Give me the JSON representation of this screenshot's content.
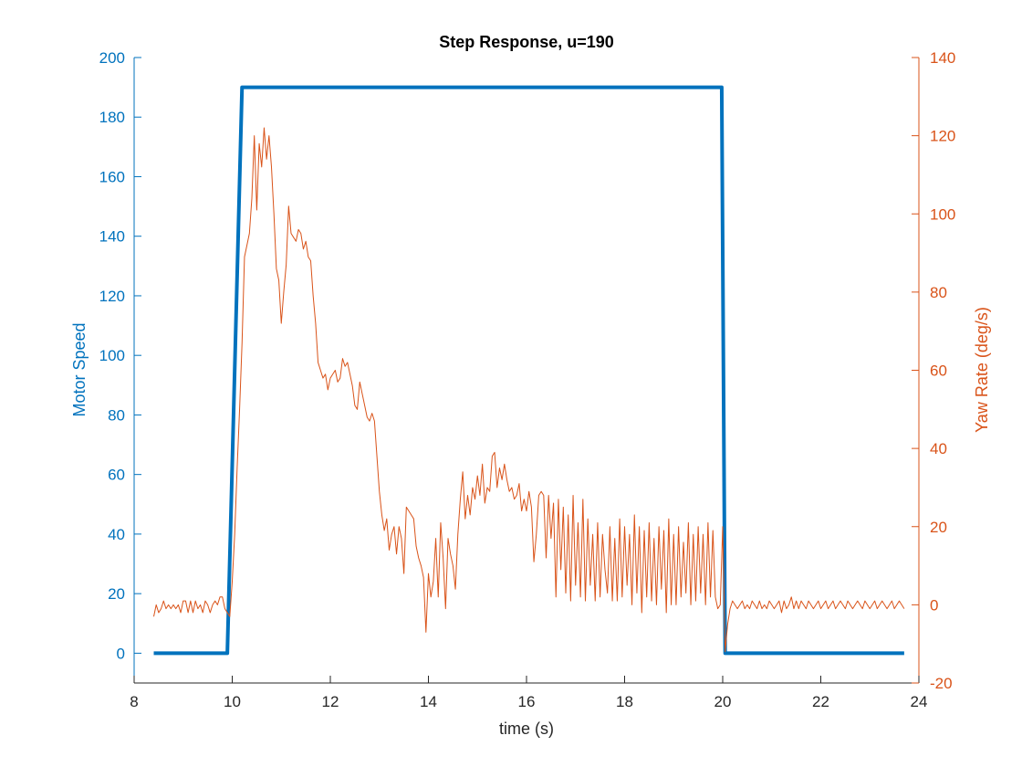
{
  "chart_data": {
    "type": "line",
    "title": "Step Response, u=190",
    "xlabel": "time (s)",
    "ylabel_left": "Motor Speed",
    "ylabel_right": "Yaw Rate (deg/s)",
    "xlim": [
      8,
      24
    ],
    "ylim_left": [
      -10,
      200
    ],
    "ylim_right": [
      -20,
      140
    ],
    "xticks": [
      8,
      10,
      12,
      14,
      16,
      18,
      20,
      22,
      24
    ],
    "yticks_left": [
      0,
      20,
      40,
      60,
      80,
      100,
      120,
      140,
      160,
      180,
      200
    ],
    "yticks_right": [
      -20,
      0,
      20,
      40,
      60,
      80,
      100,
      120,
      140
    ],
    "grid": false,
    "colors": {
      "left_axis": "#0072BD",
      "right_axis": "#D95319",
      "text": "#262626"
    },
    "series": [
      {
        "axis": "left",
        "color": "#0072BD",
        "points": [
          [
            8.4,
            0
          ],
          [
            9.9,
            0
          ],
          [
            10.2,
            190
          ],
          [
            19.98,
            190
          ],
          [
            20.05,
            0
          ],
          [
            23.7,
            0
          ]
        ]
      },
      {
        "axis": "right",
        "color": "#D95319",
        "points": [
          [
            8.4,
            -3
          ],
          [
            8.45,
            0
          ],
          [
            8.5,
            -2
          ],
          [
            8.55,
            -1
          ],
          [
            8.6,
            1
          ],
          [
            8.65,
            -1
          ],
          [
            8.7,
            0
          ],
          [
            8.75,
            -1
          ],
          [
            8.8,
            0
          ],
          [
            8.85,
            -1
          ],
          [
            8.9,
            0
          ],
          [
            8.95,
            -2
          ],
          [
            9.0,
            1
          ],
          [
            9.05,
            1
          ],
          [
            9.1,
            -2
          ],
          [
            9.15,
            1
          ],
          [
            9.2,
            -2
          ],
          [
            9.25,
            1
          ],
          [
            9.3,
            -1
          ],
          [
            9.35,
            0
          ],
          [
            9.4,
            -2
          ],
          [
            9.45,
            1
          ],
          [
            9.5,
            0
          ],
          [
            9.55,
            -2
          ],
          [
            9.6,
            0
          ],
          [
            9.65,
            1
          ],
          [
            9.7,
            0
          ],
          [
            9.75,
            2
          ],
          [
            9.8,
            2
          ],
          [
            9.85,
            -1
          ],
          [
            9.9,
            -2
          ],
          [
            9.95,
            -3
          ],
          [
            10.0,
            6
          ],
          [
            10.05,
            18
          ],
          [
            10.1,
            35
          ],
          [
            10.15,
            50
          ],
          [
            10.2,
            67
          ],
          [
            10.25,
            89
          ],
          [
            10.3,
            92
          ],
          [
            10.35,
            95
          ],
          [
            10.4,
            104
          ],
          [
            10.45,
            120
          ],
          [
            10.5,
            101
          ],
          [
            10.55,
            118
          ],
          [
            10.6,
            112
          ],
          [
            10.65,
            122
          ],
          [
            10.7,
            114
          ],
          [
            10.75,
            120
          ],
          [
            10.8,
            112
          ],
          [
            10.85,
            100
          ],
          [
            10.9,
            86
          ],
          [
            10.95,
            83
          ],
          [
            11.0,
            72
          ],
          [
            11.05,
            80
          ],
          [
            11.1,
            87
          ],
          [
            11.15,
            102
          ],
          [
            11.2,
            95
          ],
          [
            11.25,
            94
          ],
          [
            11.3,
            93
          ],
          [
            11.35,
            96
          ],
          [
            11.4,
            95
          ],
          [
            11.45,
            91
          ],
          [
            11.5,
            93
          ],
          [
            11.55,
            89
          ],
          [
            11.6,
            88
          ],
          [
            11.65,
            79
          ],
          [
            11.7,
            72
          ],
          [
            11.75,
            62
          ],
          [
            11.8,
            60
          ],
          [
            11.85,
            58
          ],
          [
            11.9,
            59
          ],
          [
            11.95,
            55
          ],
          [
            12.0,
            58
          ],
          [
            12.05,
            59
          ],
          [
            12.1,
            60
          ],
          [
            12.15,
            57
          ],
          [
            12.2,
            58
          ],
          [
            12.25,
            63
          ],
          [
            12.3,
            61
          ],
          [
            12.35,
            62
          ],
          [
            12.4,
            59
          ],
          [
            12.45,
            56
          ],
          [
            12.5,
            51
          ],
          [
            12.55,
            50
          ],
          [
            12.6,
            57
          ],
          [
            12.65,
            54
          ],
          [
            12.7,
            51
          ],
          [
            12.75,
            48
          ],
          [
            12.8,
            47
          ],
          [
            12.85,
            49
          ],
          [
            12.9,
            47
          ],
          [
            12.95,
            38
          ],
          [
            13.0,
            29
          ],
          [
            13.05,
            23
          ],
          [
            13.1,
            19
          ],
          [
            13.15,
            22
          ],
          [
            13.2,
            14
          ],
          [
            13.25,
            18
          ],
          [
            13.3,
            20
          ],
          [
            13.35,
            13
          ],
          [
            13.4,
            20
          ],
          [
            13.45,
            17
          ],
          [
            13.5,
            8
          ],
          [
            13.55,
            25
          ],
          [
            13.6,
            24
          ],
          [
            13.65,
            23
          ],
          [
            13.7,
            22
          ],
          [
            13.75,
            15
          ],
          [
            13.8,
            12
          ],
          [
            13.85,
            10
          ],
          [
            13.9,
            7
          ],
          [
            13.95,
            -7
          ],
          [
            14.0,
            8
          ],
          [
            14.05,
            2
          ],
          [
            14.1,
            6
          ],
          [
            14.15,
            17
          ],
          [
            14.2,
            2
          ],
          [
            14.25,
            21
          ],
          [
            14.3,
            12
          ],
          [
            14.35,
            -1
          ],
          [
            14.4,
            17
          ],
          [
            14.45,
            13
          ],
          [
            14.5,
            10
          ],
          [
            14.55,
            4
          ],
          [
            14.6,
            18
          ],
          [
            14.65,
            27
          ],
          [
            14.7,
            34
          ],
          [
            14.75,
            22
          ],
          [
            14.8,
            28
          ],
          [
            14.85,
            23
          ],
          [
            14.9,
            30
          ],
          [
            14.95,
            27
          ],
          [
            15.0,
            33
          ],
          [
            15.05,
            28
          ],
          [
            15.1,
            36
          ],
          [
            15.15,
            26
          ],
          [
            15.2,
            30
          ],
          [
            15.25,
            29
          ],
          [
            15.3,
            38
          ],
          [
            15.35,
            39
          ],
          [
            15.4,
            30
          ],
          [
            15.45,
            35
          ],
          [
            15.5,
            32
          ],
          [
            15.55,
            36
          ],
          [
            15.6,
            32
          ],
          [
            15.65,
            29
          ],
          [
            15.7,
            30
          ],
          [
            15.75,
            27
          ],
          [
            15.8,
            28
          ],
          [
            15.85,
            31
          ],
          [
            15.9,
            24
          ],
          [
            15.95,
            27
          ],
          [
            16.0,
            24
          ],
          [
            16.05,
            29
          ],
          [
            16.1,
            25
          ],
          [
            16.15,
            11
          ],
          [
            16.2,
            18
          ],
          [
            16.25,
            28
          ],
          [
            16.3,
            29
          ],
          [
            16.35,
            28
          ],
          [
            16.4,
            12
          ],
          [
            16.45,
            28
          ],
          [
            16.5,
            17
          ],
          [
            16.55,
            26
          ],
          [
            16.6,
            2
          ],
          [
            16.65,
            27
          ],
          [
            16.7,
            9
          ],
          [
            16.75,
            25
          ],
          [
            16.8,
            3
          ],
          [
            16.85,
            23
          ],
          [
            16.9,
            1
          ],
          [
            16.95,
            28
          ],
          [
            17.0,
            5
          ],
          [
            17.05,
            21
          ],
          [
            17.1,
            2
          ],
          [
            17.15,
            27
          ],
          [
            17.2,
            1
          ],
          [
            17.25,
            22
          ],
          [
            17.3,
            5
          ],
          [
            17.35,
            18
          ],
          [
            17.4,
            1
          ],
          [
            17.45,
            21
          ],
          [
            17.5,
            2
          ],
          [
            17.55,
            18
          ],
          [
            17.6,
            9
          ],
          [
            17.65,
            3
          ],
          [
            17.7,
            20
          ],
          [
            17.75,
            1
          ],
          [
            17.8,
            17
          ],
          [
            17.85,
            1
          ],
          [
            17.9,
            22
          ],
          [
            17.95,
            2
          ],
          [
            18.0,
            20
          ],
          [
            18.05,
            5
          ],
          [
            18.1,
            18
          ],
          [
            18.15,
            0
          ],
          [
            18.2,
            23
          ],
          [
            18.25,
            3
          ],
          [
            18.3,
            20
          ],
          [
            18.35,
            -2
          ],
          [
            18.4,
            19
          ],
          [
            18.45,
            2
          ],
          [
            18.5,
            21
          ],
          [
            18.55,
            1
          ],
          [
            18.6,
            17
          ],
          [
            18.65,
            0
          ],
          [
            18.7,
            20
          ],
          [
            18.75,
            4
          ],
          [
            18.8,
            19
          ],
          [
            18.85,
            -2
          ],
          [
            18.9,
            22
          ],
          [
            18.95,
            0
          ],
          [
            19.0,
            18
          ],
          [
            19.05,
            0
          ],
          [
            19.1,
            20
          ],
          [
            19.15,
            2
          ],
          [
            19.2,
            16
          ],
          [
            19.25,
            3
          ],
          [
            19.3,
            21
          ],
          [
            19.35,
            0
          ],
          [
            19.4,
            18
          ],
          [
            19.45,
            1
          ],
          [
            19.5,
            20
          ],
          [
            19.55,
            3
          ],
          [
            19.6,
            18
          ],
          [
            19.65,
            0
          ],
          [
            19.7,
            21
          ],
          [
            19.75,
            2
          ],
          [
            19.8,
            19
          ],
          [
            19.85,
            2
          ],
          [
            19.9,
            -1
          ],
          [
            19.95,
            0
          ],
          [
            20.0,
            20
          ],
          [
            20.05,
            -12
          ],
          [
            20.1,
            -5
          ],
          [
            20.15,
            -1
          ],
          [
            20.2,
            1
          ],
          [
            20.25,
            0
          ],
          [
            20.3,
            -1
          ],
          [
            20.35,
            0
          ],
          [
            20.4,
            1
          ],
          [
            20.45,
            -1
          ],
          [
            20.5,
            0
          ],
          [
            20.55,
            -1
          ],
          [
            20.6,
            1
          ],
          [
            20.65,
            0
          ],
          [
            20.7,
            -1
          ],
          [
            20.75,
            1
          ],
          [
            20.8,
            -1
          ],
          [
            20.85,
            0
          ],
          [
            20.9,
            -1
          ],
          [
            20.95,
            1
          ],
          [
            21.0,
            0
          ],
          [
            21.05,
            -1
          ],
          [
            21.1,
            0
          ],
          [
            21.15,
            1
          ],
          [
            21.2,
            -2
          ],
          [
            21.25,
            1
          ],
          [
            21.3,
            -1
          ],
          [
            21.35,
            0
          ],
          [
            21.4,
            2
          ],
          [
            21.45,
            -1
          ],
          [
            21.5,
            1
          ],
          [
            21.55,
            -1
          ],
          [
            21.6,
            1
          ],
          [
            21.65,
            0
          ],
          [
            21.7,
            -1
          ],
          [
            21.75,
            1
          ],
          [
            21.8,
            0
          ],
          [
            21.85,
            -1
          ],
          [
            21.9,
            0
          ],
          [
            21.95,
            1
          ],
          [
            22.0,
            -1
          ],
          [
            22.05,
            0
          ],
          [
            22.1,
            1
          ],
          [
            22.15,
            -1
          ],
          [
            22.2,
            0
          ],
          [
            22.25,
            1
          ],
          [
            22.3,
            -1
          ],
          [
            22.35,
            0
          ],
          [
            22.4,
            1
          ],
          [
            22.45,
            0
          ],
          [
            22.5,
            -1
          ],
          [
            22.55,
            1
          ],
          [
            22.6,
            0
          ],
          [
            22.65,
            -1
          ],
          [
            22.7,
            0
          ],
          [
            22.75,
            1
          ],
          [
            22.8,
            0
          ],
          [
            22.85,
            -1
          ],
          [
            22.9,
            1
          ],
          [
            22.95,
            0
          ],
          [
            23.0,
            -1
          ],
          [
            23.05,
            0
          ],
          [
            23.1,
            1
          ],
          [
            23.15,
            -1
          ],
          [
            23.2,
            0
          ],
          [
            23.25,
            1
          ],
          [
            23.3,
            0
          ],
          [
            23.35,
            -1
          ],
          [
            23.4,
            0
          ],
          [
            23.45,
            1
          ],
          [
            23.5,
            -1
          ],
          [
            23.55,
            0
          ],
          [
            23.6,
            1
          ],
          [
            23.65,
            0
          ],
          [
            23.7,
            -1
          ]
        ]
      }
    ]
  }
}
